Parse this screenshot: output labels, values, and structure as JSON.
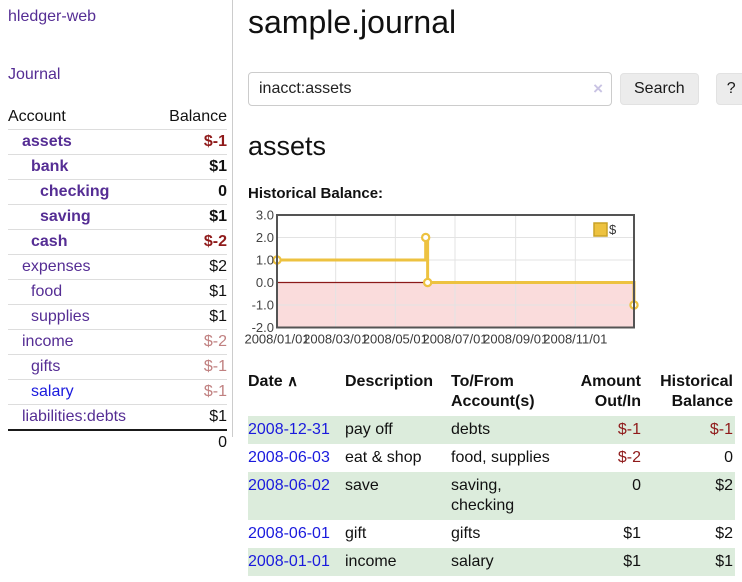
{
  "colors": {
    "purple": "#552d94",
    "blue": "#1a1add",
    "negStrong": "#8f1a1a",
    "negSoft": "#c08080",
    "rowGreen": "#dcecdc",
    "gold": "#edc240",
    "goldBorder": "#c9a227",
    "pink": "#fadcdc",
    "zeroLine": "#8b1a1a",
    "grid": "#e3e3e3",
    "plotBorder": "#545454"
  },
  "app": {
    "brand": "hledger-web",
    "nav_journal": "Journal"
  },
  "sidebar": {
    "accounts_header": {
      "account": "Account",
      "balance": "Balance"
    },
    "accounts": [
      {
        "name": "assets",
        "indent": 1,
        "bold": true,
        "balance": "$-1",
        "balance_color": "negStrong"
      },
      {
        "name": "bank",
        "indent": 2,
        "bold": true,
        "balance": "$1",
        "balance_color": "pos"
      },
      {
        "name": "checking",
        "indent": 3,
        "bold": true,
        "balance": "0",
        "balance_color": "pos"
      },
      {
        "name": "saving",
        "indent": 3,
        "bold": true,
        "balance": "$1",
        "balance_color": "pos"
      },
      {
        "name": "cash",
        "indent": 2,
        "bold": true,
        "balance": "$-2",
        "balance_color": "negStrong"
      },
      {
        "name": "expenses",
        "indent": 1,
        "bold": false,
        "balance": "$2",
        "balance_color": "pos"
      },
      {
        "name": "food",
        "indent": 2,
        "bold": false,
        "balance": "$1",
        "balance_color": "pos"
      },
      {
        "name": "supplies",
        "indent": 2,
        "bold": false,
        "balance": "$1",
        "balance_color": "pos"
      },
      {
        "name": "income",
        "indent": 1,
        "bold": false,
        "balance": "$-2",
        "balance_color": "negSoft"
      },
      {
        "name": "gifts",
        "indent": 2,
        "bold": false,
        "balance": "$-1",
        "balance_color": "negSoft"
      },
      {
        "name": "salary",
        "indent": 2,
        "bold": false,
        "link_color": "blue",
        "balance": "$-1",
        "balance_color": "negSoft"
      },
      {
        "name": "liabilities:debts",
        "indent": 1,
        "bold": false,
        "balance": "$1",
        "balance_color": "pos"
      }
    ],
    "total": "0"
  },
  "header": {
    "title": "sample.journal"
  },
  "search": {
    "value": "inacct:assets",
    "clear_label": "×",
    "button_label": "Search",
    "help_label": "?"
  },
  "account_page": {
    "heading": "assets",
    "chart_label": "Historical Balance:"
  },
  "chart_data": {
    "type": "line",
    "title": "Historical Balance",
    "step": true,
    "series": [
      {
        "name": "$",
        "points": [
          [
            "2008/01/01",
            1
          ],
          [
            "2008/06/01",
            2
          ],
          [
            "2008/06/03",
            0
          ],
          [
            "2008/12/31",
            -1
          ]
        ]
      }
    ],
    "x_range": [
      "2008/01/01",
      "2008/12/31"
    ],
    "x_ticks": [
      "2008/01/01",
      "2008/03/01",
      "2008/05/01",
      "2008/07/01",
      "2008/09/01",
      "2008/11/01"
    ],
    "y_ticks": [
      "3.0",
      "2.0",
      "1.0",
      "0.0",
      "-1.0",
      "-2.0"
    ],
    "ylim": [
      -2,
      3
    ],
    "grid": true,
    "legend": {
      "label": "$",
      "position": "top-right"
    },
    "negative_region": true
  },
  "register": {
    "sort_caret": "∧",
    "columns": {
      "date": "Date",
      "description": "Description",
      "accounts": "To/From Account(s)",
      "amount": "Amount Out/In",
      "balance": "Historical Balance"
    },
    "rows": [
      {
        "date": "2008-12-31",
        "description": "pay off",
        "accounts": "debts",
        "amount": "$-1",
        "amount_neg": true,
        "balance": "$-1",
        "balance_neg": true
      },
      {
        "date": "2008-06-03",
        "description": "eat & shop",
        "accounts": "food, supplies",
        "amount": "$-2",
        "amount_neg": true,
        "balance": "0",
        "balance_neg": false
      },
      {
        "date": "2008-06-02",
        "description": "save",
        "accounts": "saving, checking",
        "amount": "0",
        "amount_neg": false,
        "balance": "$2",
        "balance_neg": false
      },
      {
        "date": "2008-06-01",
        "description": "gift",
        "accounts": "gifts",
        "amount": "$1",
        "amount_neg": false,
        "balance": "$2",
        "balance_neg": false
      },
      {
        "date": "2008-01-01",
        "description": "income",
        "accounts": "salary",
        "amount": "$1",
        "amount_neg": false,
        "balance": "$1",
        "balance_neg": false
      }
    ]
  }
}
